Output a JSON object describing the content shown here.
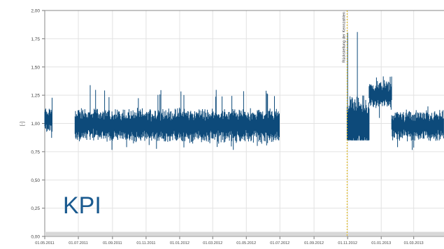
{
  "chart_data": {
    "type": "line",
    "title": "",
    "xlabel": "",
    "ylabel": "[-]",
    "ylim": [
      0,
      2
    ],
    "xlim": [
      "2011-05-01",
      "2013-04-25"
    ],
    "grid": true,
    "y_ticks": [
      "0,00",
      "0,25",
      "0,50",
      "0,75",
      "1,00",
      "1,25",
      "1,50",
      "1,75",
      "2,00"
    ],
    "y_tick_values": [
      0,
      0.25,
      0.5,
      0.75,
      1.0,
      1.25,
      1.5,
      1.75,
      2.0
    ],
    "x_ticks": [
      "01.05.2011",
      "01.07.2011",
      "01.09.2011",
      "01.11.2011",
      "01.01.2012",
      "01.03.2012",
      "01.05.2012",
      "01.07.2012",
      "01.09.2012",
      "01.11.2012",
      "01.01.2013",
      "01.03.2013"
    ],
    "x_tick_dates": [
      "2011-05-01",
      "2011-07-01",
      "2011-09-01",
      "2011-11-01",
      "2012-01-01",
      "2012-03-01",
      "2012-05-01",
      "2012-07-01",
      "2012-09-01",
      "2012-11-01",
      "2013-01-01",
      "2013-03-01"
    ],
    "series_color": "#0d4a7a",
    "marker_color": "#e0b400",
    "series": [
      {
        "name": "",
        "segments": [
          {
            "from": "2011-05-01",
            "to": "2011-05-15",
            "mean": 1.03,
            "low": 0.86,
            "high": 1.25
          },
          {
            "from": "2011-06-25",
            "to": "2011-08-15",
            "mean": 0.99,
            "low": 0.84,
            "high": 1.35
          },
          {
            "from": "2011-08-15",
            "to": "2012-06-30",
            "mean": 0.98,
            "low": 0.76,
            "high": 1.3
          },
          {
            "from": "2012-10-31",
            "to": "2012-12-10",
            "mean": 0.98,
            "low": 0.85,
            "high": 1.85
          },
          {
            "from": "2012-12-10",
            "to": "2013-01-20",
            "mean": 1.25,
            "low": 1.0,
            "high": 1.42
          },
          {
            "from": "2013-01-20",
            "to": "2013-04-25",
            "mean": 0.98,
            "low": 0.75,
            "high": 1.22
          }
        ]
      }
    ],
    "annotations": [
      {
        "date": "2012-10-31",
        "text": "Rückstellung der Kennzahlen"
      }
    ],
    "overlay_label": "KPI"
  }
}
